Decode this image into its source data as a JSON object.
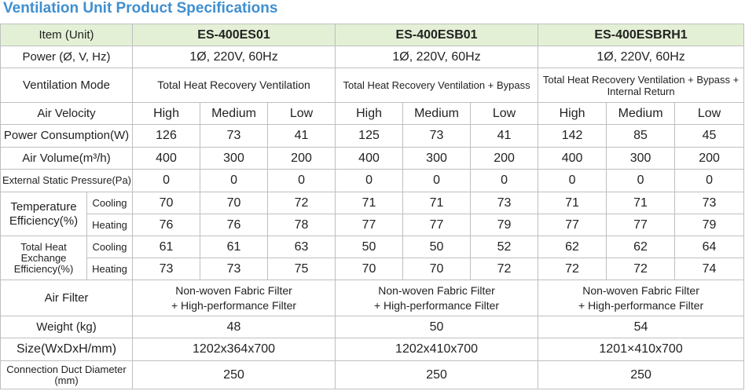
{
  "title": "Ventilation Unit Product Specifications",
  "header": {
    "item": "Item (Unit)",
    "models": [
      "ES-400ES01",
      "ES-400ESB01",
      "ES-400ESBRH1"
    ]
  },
  "power": {
    "label": "Power (Ø, V, Hz)",
    "values": [
      "1Ø, 220V, 60Hz",
      "1Ø, 220V, 60Hz",
      "1Ø, 220V, 60Hz"
    ]
  },
  "mode": {
    "label": "Ventilation Mode",
    "values": [
      "Total Heat Recovery Ventilation",
      "Total Heat Recovery Ventilation + Bypass",
      "Total Heat Recovery Ventilation + Bypass + Internal Return"
    ]
  },
  "air_velocity": {
    "label": "Air Velocity",
    "values": [
      "High",
      "Medium",
      "Low",
      "High",
      "Medium",
      "Low",
      "High",
      "Medium",
      "Low"
    ]
  },
  "power_consumption": {
    "label": "Power Consumption(W)",
    "values": [
      "126",
      "73",
      "41",
      "125",
      "73",
      "41",
      "142",
      "85",
      "45"
    ]
  },
  "air_volume": {
    "label": "Air Volume(m³/h)",
    "values": [
      "400",
      "300",
      "200",
      "400",
      "300",
      "200",
      "400",
      "300",
      "200"
    ]
  },
  "static_pressure": {
    "label": "External Static Pressure(Pa)",
    "values": [
      "0",
      "0",
      "0",
      "0",
      "0",
      "0",
      "0",
      "0",
      "0"
    ]
  },
  "temp_eff": {
    "label": "Temperature Efficiency(%)",
    "cooling_label": "Cooling",
    "heating_label": "Heating",
    "cooling": [
      "70",
      "70",
      "72",
      "71",
      "71",
      "73",
      "71",
      "71",
      "73"
    ],
    "heating": [
      "76",
      "76",
      "78",
      "77",
      "77",
      "79",
      "77",
      "77",
      "79"
    ]
  },
  "heat_eff": {
    "label": "Total Heat Exchange Efficiency(%)",
    "cooling_label": "Cooling",
    "heating_label": "Heating",
    "cooling": [
      "61",
      "61",
      "63",
      "50",
      "50",
      "52",
      "62",
      "62",
      "64"
    ],
    "heating": [
      "73",
      "73",
      "75",
      "70",
      "70",
      "72",
      "72",
      "72",
      "74"
    ]
  },
  "air_filter": {
    "label": "Air Filter",
    "line1": [
      "Non-woven Fabric Filter",
      "Non-woven Fabric Filter",
      "Non-woven Fabric Filter"
    ],
    "line2": [
      "+ High-performance Filter",
      "+ High-performance Filter",
      "+ High-performance Filter"
    ]
  },
  "weight": {
    "label": "Weight (kg)",
    "values": [
      "48",
      "50",
      "54"
    ]
  },
  "size": {
    "label": "Size(WxDxH/mm)",
    "values": [
      "1202x364x700",
      "1202x410x700",
      "1201×410x700"
    ]
  },
  "duct": {
    "label": "Connection Duct Diameter (mm)",
    "values": [
      "250",
      "250",
      "250"
    ]
  }
}
